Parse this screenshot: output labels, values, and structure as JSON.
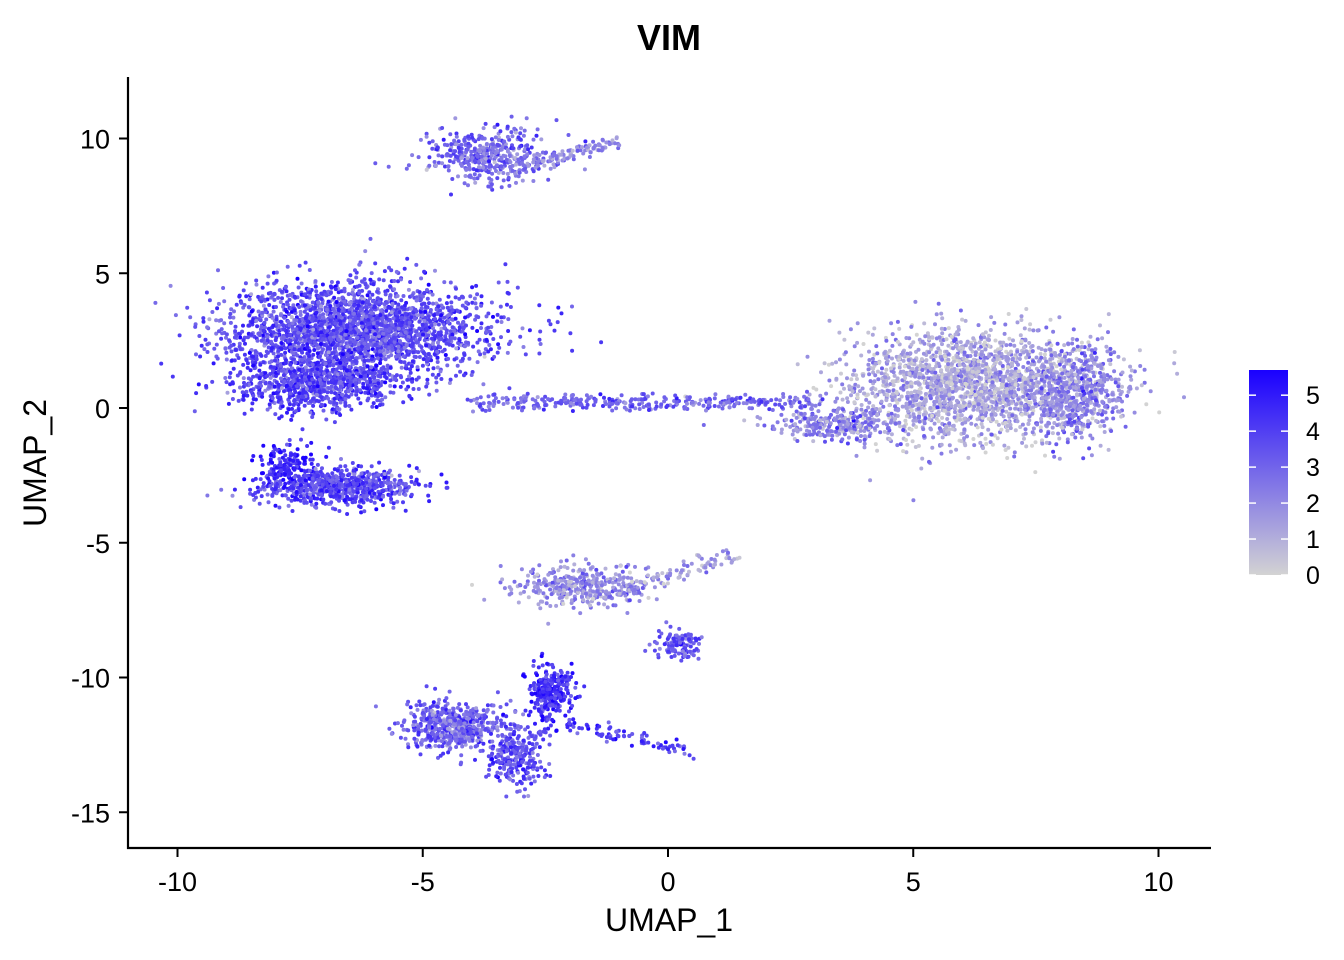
{
  "chart_data": {
    "type": "scatter",
    "title": "VIM",
    "xlabel": "UMAP_1",
    "ylabel": "UMAP_2",
    "xlim": [
      -11,
      11
    ],
    "ylim": [
      -16.2,
      12.3
    ],
    "xticks": [
      -10,
      -5,
      0,
      5,
      10
    ],
    "yticks": [
      -15,
      -10,
      -5,
      0,
      5,
      10
    ],
    "xtick_labels": [
      "-10",
      "-5",
      "0",
      "5",
      "10"
    ],
    "ytick_labels": [
      "-15",
      "-10",
      "-5",
      "0",
      "5",
      "10"
    ],
    "grid": false,
    "color_scale": {
      "label": "",
      "min": 0,
      "max": 5.7,
      "low_color": "#d3d3d3",
      "high_color": "#1a00ff",
      "ticks": [
        0,
        1,
        2,
        3,
        4,
        5
      ],
      "tick_labels": [
        "0",
        "1",
        "2",
        "3",
        "4",
        "5"
      ],
      "legend_position": "right"
    },
    "clusters": [
      {
        "x": -6.3,
        "y": 2.9,
        "sx": 1.45,
        "sy": 0.95,
        "n": 2400,
        "expr": 3.6
      },
      {
        "x": -7.2,
        "y": 0.9,
        "sx": 0.9,
        "sy": 0.6,
        "n": 800,
        "expr": 3.9
      },
      {
        "x": -6.7,
        "y": -2.9,
        "sx": 0.9,
        "sy": 0.4,
        "n": 700,
        "expr": 3.8
      },
      {
        "x": -7.8,
        "y": -2.1,
        "sx": 0.3,
        "sy": 0.4,
        "n": 140,
        "expr": 4.8
      },
      {
        "x": -3.7,
        "y": 9.3,
        "sx": 0.75,
        "sy": 0.55,
        "n": 420,
        "expr": 2.8
      },
      {
        "x": 6.2,
        "y": 0.8,
        "sx": 1.45,
        "sy": 1.1,
        "n": 2000,
        "expr": 1.2
      },
      {
        "x": 8.3,
        "y": 0.6,
        "sx": 0.55,
        "sy": 1.0,
        "n": 500,
        "expr": 2.2
      },
      {
        "x": 3.5,
        "y": -0.6,
        "sx": 0.8,
        "sy": 0.35,
        "n": 260,
        "expr": 2.2
      },
      {
        "x": -1.8,
        "y": -6.6,
        "sx": 0.75,
        "sy": 0.4,
        "n": 380,
        "expr": 2.0
      },
      {
        "x": -4.4,
        "y": -11.8,
        "sx": 0.55,
        "sy": 0.5,
        "n": 550,
        "expr": 3.0
      },
      {
        "x": -2.4,
        "y": -10.6,
        "sx": 0.25,
        "sy": 0.55,
        "n": 300,
        "expr": 4.5
      },
      {
        "x": -3.1,
        "y": -12.9,
        "sx": 0.35,
        "sy": 0.6,
        "n": 260,
        "expr": 3.6
      },
      {
        "x": 0.2,
        "y": -8.8,
        "sx": 0.28,
        "sy": 0.35,
        "n": 110,
        "expr": 3.4
      }
    ],
    "bridges": [
      {
        "x0": -4.0,
        "y0": 0.2,
        "x1": 3.0,
        "y1": 0.2,
        "n": 320,
        "expr": 3.0
      },
      {
        "x0": -1.0,
        "y0": -6.8,
        "x1": 1.4,
        "y1": -5.4,
        "n": 90,
        "expr": 1.5
      },
      {
        "x0": -2.0,
        "y0": -11.7,
        "x1": 0.4,
        "y1": -12.8,
        "n": 80,
        "expr": 4.0
      },
      {
        "x0": -2.8,
        "y0": 9.0,
        "x1": -1.1,
        "y1": 9.9,
        "n": 90,
        "expr": 1.8
      }
    ]
  }
}
